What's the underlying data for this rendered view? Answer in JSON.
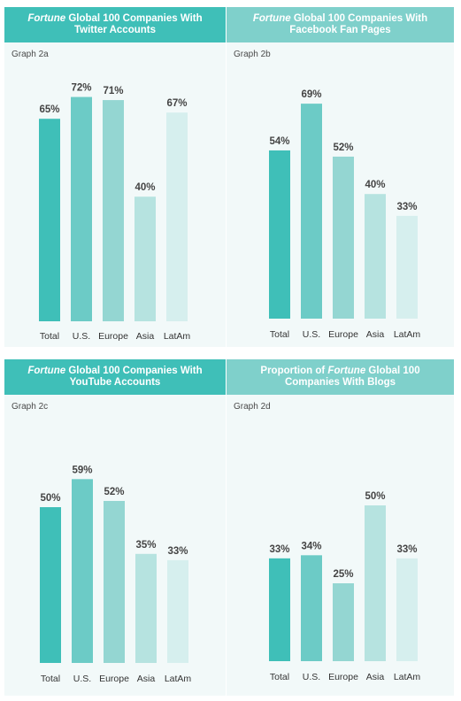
{
  "colors": {
    "bar_shades": [
      "#3fbfb8",
      "#6ccbc6",
      "#94d6d2",
      "#b6e3e0",
      "#d6efee"
    ],
    "header_dark": "#3fbfb8",
    "header_light": "#7fd0cb"
  },
  "panels": [
    {
      "header_italic": "Fortune",
      "header_rest": " Global 100 Companies With Twitter Accounts",
      "graph_label": "Graph 2a"
    },
    {
      "header_italic": "Fortune",
      "header_rest": " Global 100 Companies With Facebook Fan Pages",
      "graph_label": "Graph 2b"
    },
    {
      "header_italic": "Fortune",
      "header_rest": " Global 100 Companies With YouTube Accounts",
      "graph_label": "Graph 2c"
    },
    {
      "header_pre": "Proportion of ",
      "header_italic": "Fortune",
      "header_rest": " Global 100 Companies With Blogs",
      "graph_label": "Graph 2d"
    }
  ],
  "chart_data": [
    {
      "type": "bar",
      "title": "Fortune Global 100 Companies With Twitter Accounts",
      "categories": [
        "Total",
        "U.S.",
        "Europe",
        "Asia",
        "LatAm"
      ],
      "values": [
        65,
        72,
        71,
        40,
        67
      ],
      "value_labels": [
        "65%",
        "72%",
        "71%",
        "40%",
        "67%"
      ],
      "ylim": [
        0,
        100
      ]
    },
    {
      "type": "bar",
      "title": "Fortune Global 100 Companies With Facebook Fan Pages",
      "categories": [
        "Total",
        "U.S.",
        "Europe",
        "Asia",
        "LatAm"
      ],
      "values": [
        54,
        69,
        52,
        40,
        33
      ],
      "value_labels": [
        "54%",
        "69%",
        "52%",
        "40%",
        "33%"
      ],
      "ylim": [
        0,
        100
      ]
    },
    {
      "type": "bar",
      "title": "Fortune Global 100 Companies With YouTube Accounts",
      "categories": [
        "Total",
        "U.S.",
        "Europe",
        "Asia",
        "LatAm"
      ],
      "values": [
        50,
        59,
        52,
        35,
        33
      ],
      "value_labels": [
        "50%",
        "59%",
        "52%",
        "35%",
        "33%"
      ],
      "ylim": [
        0,
        100
      ]
    },
    {
      "type": "bar",
      "title": "Proportion of Fortune Global 100 Companies With Blogs",
      "categories": [
        "Total",
        "U.S.",
        "Europe",
        "Asia",
        "LatAm"
      ],
      "values": [
        33,
        34,
        25,
        50,
        33
      ],
      "value_labels": [
        "33%",
        "34%",
        "25%",
        "50%",
        "33%"
      ],
      "ylim": [
        0,
        100
      ]
    }
  ]
}
